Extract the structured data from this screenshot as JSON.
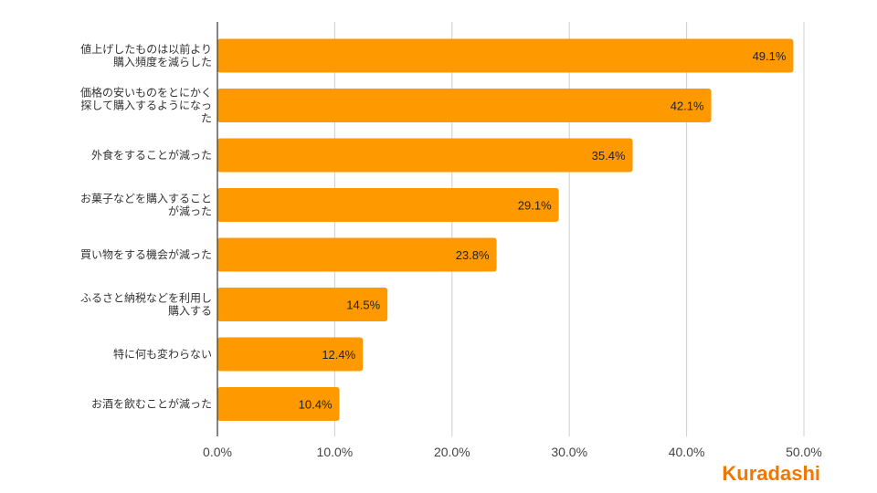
{
  "chart_data": {
    "type": "bar",
    "orientation": "horizontal",
    "categories": [
      [
        "値上げしたものは以前より",
        "購入頻度を減らした"
      ],
      [
        "価格の安いものをとにかく",
        "探して購入するようになっ",
        "た"
      ],
      [
        "外食をすることが減った"
      ],
      [
        "お菓子などを購入すること",
        "が減った"
      ],
      [
        "買い物をする機会が減った"
      ],
      [
        "ふるさと納税などを利用し",
        "購入する"
      ],
      [
        "特に何も変わらない"
      ],
      [
        "お酒を飲むことが減った"
      ]
    ],
    "values": [
      49.1,
      42.1,
      35.4,
      29.1,
      23.8,
      14.5,
      12.4,
      10.4
    ],
    "value_labels": [
      "49.1%",
      "42.1%",
      "35.4%",
      "29.1%",
      "23.8%",
      "14.5%",
      "12.4%",
      "10.4%"
    ],
    "xlim": [
      0,
      50
    ],
    "x_ticks": [
      "0.0%",
      "10.0%",
      "20.0%",
      "30.0%",
      "40.0%",
      "50.0%"
    ],
    "grid": true,
    "title": "",
    "xlabel": "",
    "ylabel": "",
    "bar_color": "#ff9900",
    "grid_color": "#cccccc"
  },
  "brand": {
    "logo_text": "Kuradashi",
    "logo_color": "#ee7800"
  }
}
